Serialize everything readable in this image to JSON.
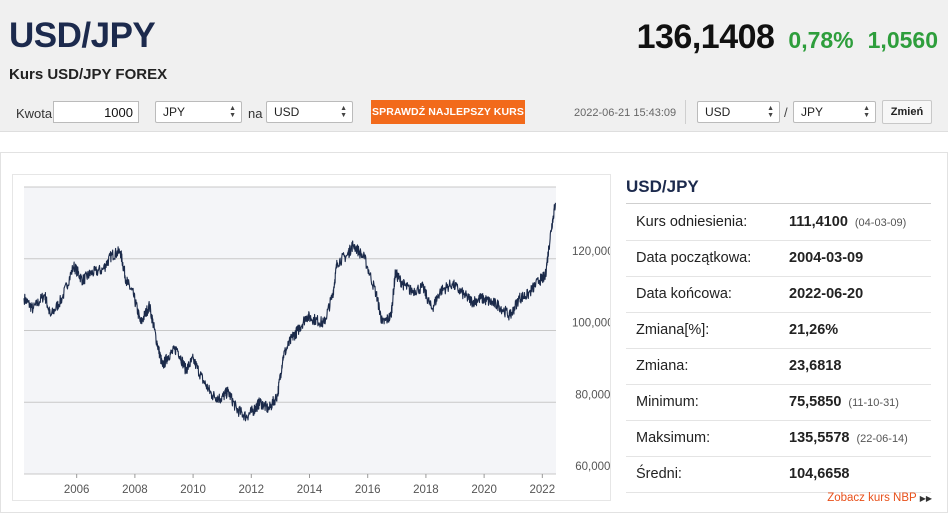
{
  "header": {
    "pair": "USD/JPY",
    "subtitle": "Kurs USD/JPY FOREX",
    "price": "136,1408",
    "change_pct": "0,78%",
    "change_abs": "1,0560",
    "colors": {
      "positive": "#2e9e3c",
      "title": "#1c2a4d"
    }
  },
  "converter": {
    "amount_label": "Kwota",
    "amount_value": "1000",
    "from_currency": "JPY",
    "to_label": "na",
    "to_currency": "USD",
    "best_rate_button": "SPRAWDŹ NAJLEPSZY KURS",
    "best_rate_color": "#f26a1b",
    "timestamp": "2022-06-21 15:43:09",
    "pair_base": "USD",
    "pair_separator": "/",
    "pair_quote": "JPY",
    "swap_button": "Zmień"
  },
  "info": {
    "title": "USD/JPY",
    "rows": [
      {
        "key": "Kurs odniesienia:",
        "value": "111,4100",
        "date": "(04-03-09)"
      },
      {
        "key": "Data początkowa:",
        "value": "2004-03-09",
        "date": ""
      },
      {
        "key": "Data końcowa:",
        "value": "2022-06-20",
        "date": ""
      },
      {
        "key": "Zmiana[%]:",
        "value": "21,26%",
        "date": ""
      },
      {
        "key": "Zmiana:",
        "value": "23,6818",
        "date": ""
      },
      {
        "key": "Minimum:",
        "value": "75,5850",
        "date": "(11-10-31)"
      },
      {
        "key": "Maksimum:",
        "value": "135,5578",
        "date": "(22-06-14)"
      },
      {
        "key": "Średni:",
        "value": "104,6658",
        "date": ""
      }
    ],
    "nbp_link": "Zobacz kurs NBP"
  },
  "chart_data": {
    "type": "line",
    "title": "",
    "xlabel": "",
    "ylabel": "",
    "x_ticks": [
      "2006",
      "2008",
      "2010",
      "2012",
      "2014",
      "2016",
      "2018",
      "2020",
      "2022"
    ],
    "x_tick_values": [
      2006,
      2008,
      2010,
      2012,
      2014,
      2016,
      2018,
      2020,
      2022
    ],
    "y_ticks": [
      "60,0000",
      "80,0000",
      "100,0000",
      "120,0000"
    ],
    "y_tick_values": [
      60,
      80,
      100,
      120
    ],
    "xlim": [
      2004.19,
      2022.47
    ],
    "ylim": [
      60,
      140
    ],
    "grid": true,
    "line_color": "#1b2a4a",
    "series": [
      {
        "x": [
          2004.19,
          2004.5,
          2004.9,
          2005.1,
          2005.5,
          2005.9,
          2006.2,
          2006.5,
          2006.9,
          2007.2,
          2007.5,
          2007.7,
          2007.95,
          2008.2,
          2008.5,
          2008.75,
          2008.95,
          2009.15,
          2009.45,
          2009.75,
          2010.0,
          2010.35,
          2010.65,
          2010.95,
          2011.2,
          2011.5,
          2011.83,
          2012.1,
          2012.3,
          2012.6,
          2012.9,
          2013.1,
          2013.4,
          2013.6,
          2013.9,
          2014.2,
          2014.5,
          2014.8,
          2014.95,
          2015.3,
          2015.5,
          2015.9,
          2016.3,
          2016.5,
          2016.8,
          2016.95,
          2017.2,
          2017.5,
          2017.9,
          2018.2,
          2018.5,
          2018.9,
          2019.3,
          2019.6,
          2019.9,
          2020.2,
          2020.5,
          2020.9,
          2021.2,
          2021.5,
          2021.9,
          2022.1,
          2022.3,
          2022.45
        ],
        "y": [
          109,
          106,
          110,
          104,
          109,
          118,
          114,
          116,
          117,
          121,
          122,
          114,
          110,
          102,
          107,
          97,
          90,
          93,
          95,
          89,
          92,
          86,
          82,
          81,
          83,
          78,
          76,
          78,
          80,
          78,
          82,
          93,
          98,
          100,
          104,
          103,
          102,
          110,
          119,
          121,
          124,
          120,
          110,
          102,
          104,
          116,
          113,
          111,
          112,
          106,
          111,
          113,
          110,
          108,
          109,
          108,
          107,
          104,
          109,
          110,
          114,
          115,
          128,
          135.6
        ]
      }
    ]
  }
}
